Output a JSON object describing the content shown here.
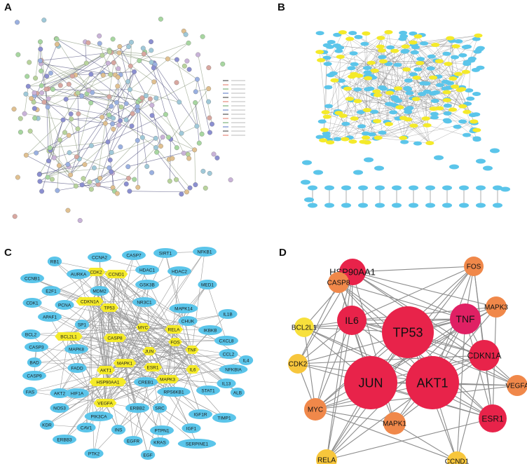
{
  "panels": {
    "a": {
      "letter": "A"
    },
    "b": {
      "letter": "B"
    },
    "c": {
      "letter": "C"
    },
    "d": {
      "letter": "D"
    }
  },
  "panel_c_nodes": {
    "hubs": [
      "CDK2",
      "CCND1",
      "CDKN1A",
      "TP53",
      "BCL2L1",
      "CASP8",
      "MYC",
      "RELA",
      "FOS",
      "TNF",
      "JUN",
      "MAPK1",
      "AKT1",
      "ESR1",
      "IL6",
      "MAPK3",
      "HSP90AA1",
      "VEGFA"
    ],
    "others": [
      "RB1",
      "CCNA2",
      "CASP7",
      "SIRT1",
      "NFKB1",
      "CCNB1",
      "AURKA",
      "HDAC1",
      "HDAC2",
      "MED1",
      "E2F1",
      "CDK1",
      "MDM2",
      "GSK3B",
      "PCNA",
      "NR3C1",
      "MAPK14",
      "CHUK",
      "IL1B",
      "APAF1",
      "SP1",
      "IKBKB",
      "CXCL8",
      "BCL2",
      "CASP3",
      "CCL2",
      "MAPK8",
      "IL4",
      "BAD",
      "CASP9",
      "NFKBIA",
      "FADD",
      "FAS",
      "AKT2",
      "HIF1A",
      "CREB1",
      "RPS6KB1",
      "STAT1",
      "IL13",
      "ALB",
      "NOS3",
      "PIK3CA",
      "ERBB2",
      "SRC",
      "IGF1R",
      "TIMP1",
      "KDR",
      "CAV1",
      "INS",
      "PTPN1",
      "IGF1",
      "ERBB3",
      "EGFR",
      "KRAS",
      "SERPINE1",
      "PTK2",
      "EGF"
    ]
  },
  "panel_d_nodes": [
    "HSP90AA1",
    "FOS",
    "CASP8",
    "IL6",
    "TP53",
    "TNF",
    "MAPK3",
    "BCL2L1",
    "CDKN1A",
    "CDK2",
    "JUN",
    "AKT1",
    "VEGFA",
    "MYC",
    "ESR1",
    "MAPK1",
    "RELA",
    "CCND1"
  ],
  "colors": {
    "node_blue": "#5bc5ea",
    "node_yellow": "#f4ea2a",
    "edge_gray": "#8c8c8c",
    "d_red": "#e8234a",
    "d_orange": "#f0884a",
    "d_yellow": "#f7c63c"
  }
}
